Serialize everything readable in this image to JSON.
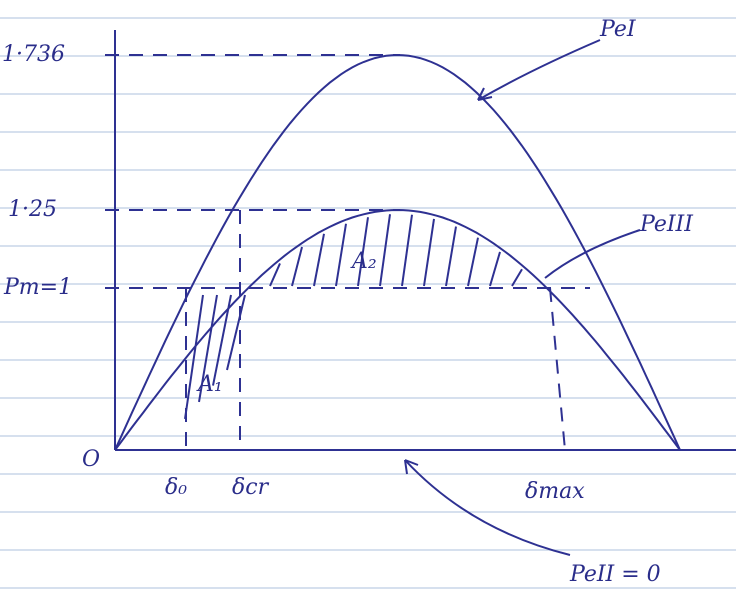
{
  "y_labels": [
    "1·736",
    "1·25",
    "Pm=1",
    "O"
  ],
  "x_labels": [
    "δ₀",
    "δcr",
    "δmax"
  ],
  "curve_labels": [
    "PeI",
    "PeIII",
    "PeII = 0"
  ],
  "area_labels": [
    "A₁",
    "A₂"
  ]
}
